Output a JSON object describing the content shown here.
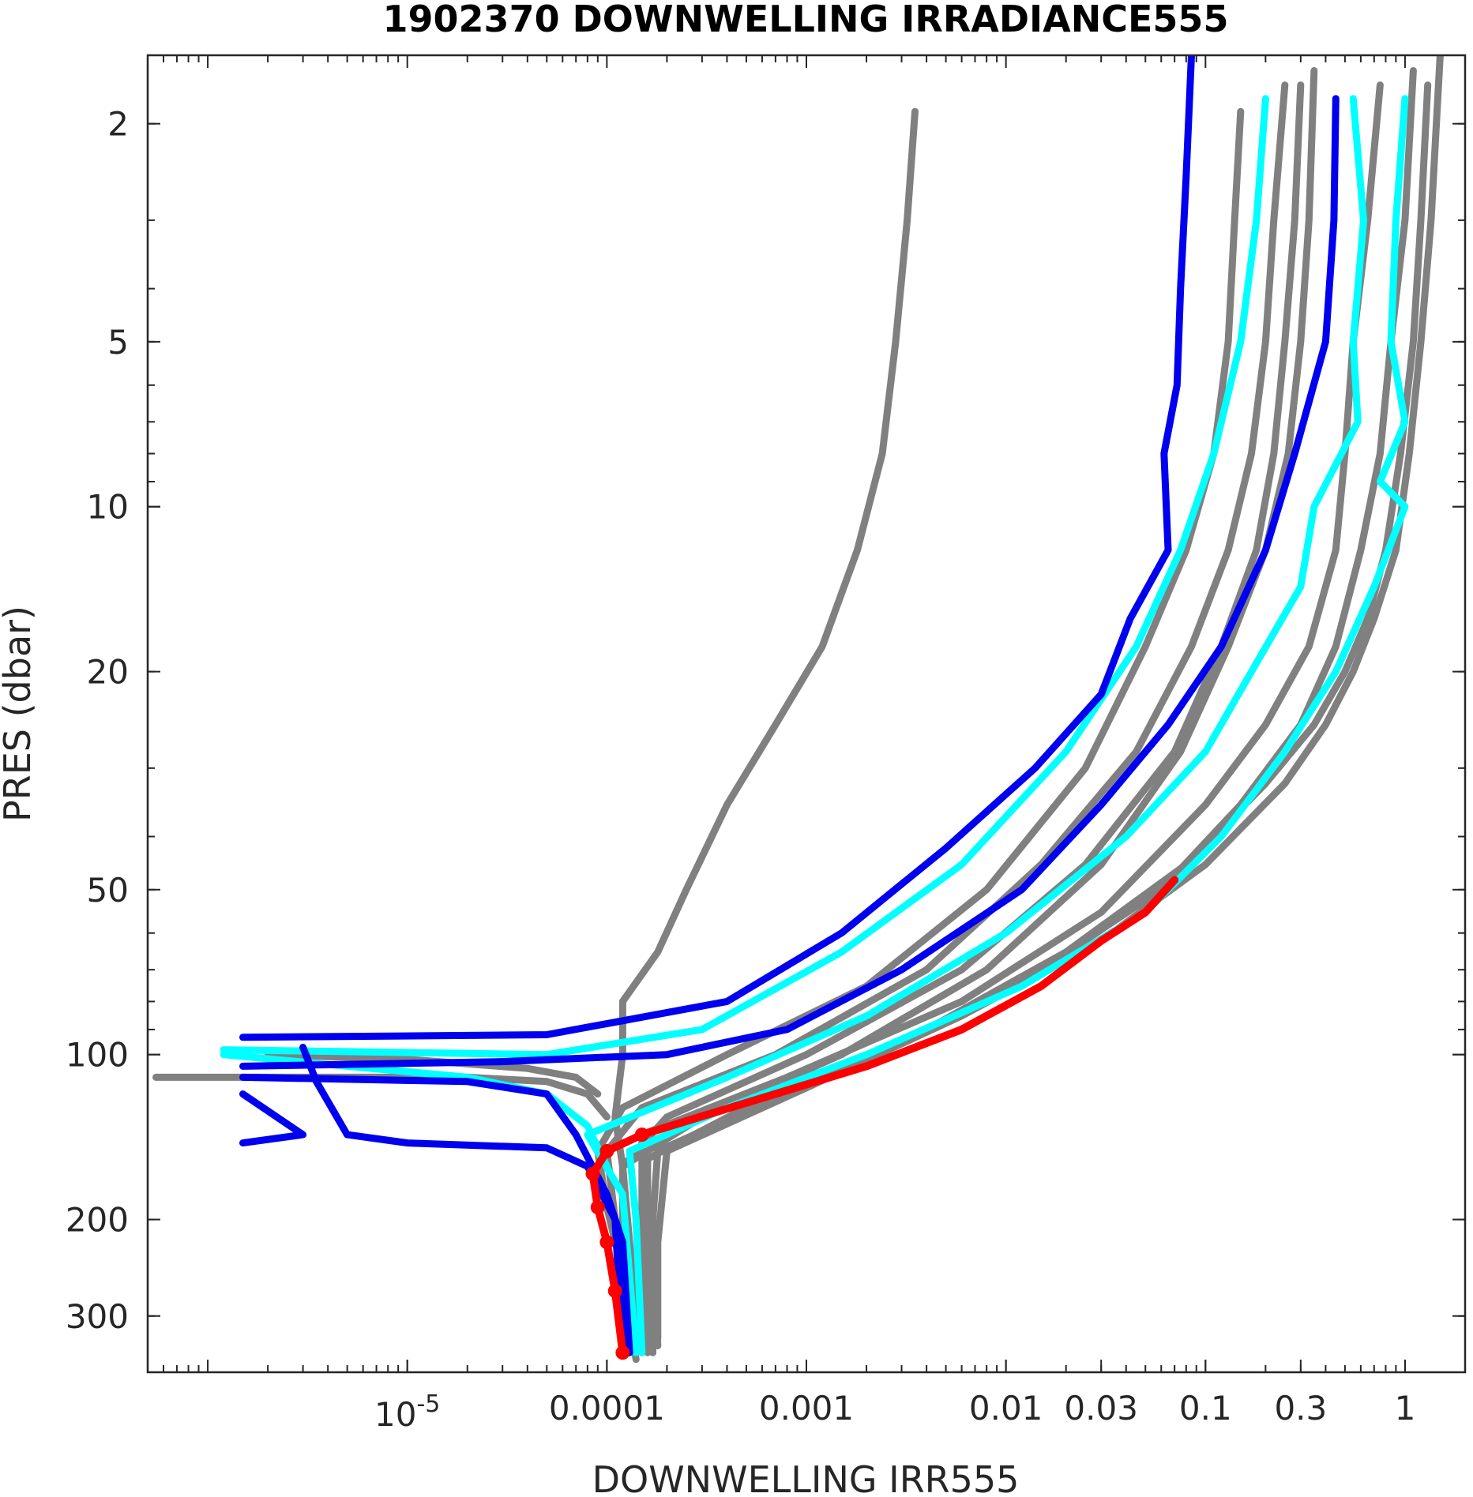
{
  "chart_data": {
    "type": "line",
    "title": "1902370  DOWNWELLING IRRADIANCE555",
    "xlabel": "DOWNWELLING IRR555",
    "ylabel": "PRES (dbar)",
    "x_scale": "log",
    "y_scale": "log",
    "y_reversed": true,
    "xlim": [
      5e-07,
      2
    ],
    "ylim": [
      1.5,
      380
    ],
    "x_ticks": [
      1e-05,
      0.0001,
      0.001,
      0.01,
      0.03,
      0.1,
      0.3,
      1
    ],
    "x_tick_labels": [
      {
        "base": "10",
        "exp": "-5"
      },
      {
        "base": "0.0001",
        "exp": ""
      },
      {
        "base": "0.001",
        "exp": ""
      },
      {
        "base": "0.01",
        "exp": ""
      },
      {
        "base": "0.03",
        "exp": ""
      },
      {
        "base": "0.1",
        "exp": ""
      },
      {
        "base": "0.3",
        "exp": ""
      },
      {
        "base": "1",
        "exp": ""
      }
    ],
    "y_ticks": [
      2,
      5,
      10,
      20,
      50,
      100,
      200,
      300
    ],
    "y_tick_labels": [
      "2",
      "5",
      "10",
      "20",
      "50",
      "100",
      "200",
      "300"
    ],
    "colors": {
      "gray": "#808080",
      "blue": "#0000ee",
      "cyan": "#00ffff",
      "red": "#ff0000",
      "axis": "#262626"
    },
    "series": [
      {
        "color": "gray",
        "points": [
          [
            0.0035,
            1.9
          ],
          [
            0.0032,
            3
          ],
          [
            0.0028,
            5
          ],
          [
            0.0024,
            8
          ],
          [
            0.0018,
            12
          ],
          [
            0.0012,
            18
          ],
          [
            0.0007,
            25
          ],
          [
            0.0004,
            35
          ],
          [
            0.00025,
            50
          ],
          [
            0.00018,
            65
          ],
          [
            0.00012,
            80
          ],
          [
            0.00012,
            100
          ],
          [
            0.00011,
            130
          ],
          [
            0.00012,
            160
          ],
          [
            0.00012,
            200
          ],
          [
            0.00013,
            300
          ],
          [
            0.00014,
            360
          ]
        ]
      },
      {
        "color": "gray",
        "points": [
          [
            0.15,
            1.9
          ],
          [
            0.14,
            3
          ],
          [
            0.13,
            5
          ],
          [
            0.11,
            8
          ],
          [
            0.08,
            12
          ],
          [
            0.05,
            18
          ],
          [
            0.025,
            30
          ],
          [
            0.008,
            50
          ],
          [
            0.002,
            75
          ],
          [
            0.0004,
            100
          ],
          [
            0.00012,
            125
          ],
          [
            9e-05,
            150
          ],
          [
            0.0001,
            190
          ],
          [
            0.00012,
            250
          ],
          [
            0.00014,
            350
          ]
        ]
      },
      {
        "color": "gray",
        "points": [
          [
            0.25,
            1.7
          ],
          [
            0.22,
            3
          ],
          [
            0.2,
            5
          ],
          [
            0.17,
            8
          ],
          [
            0.13,
            12
          ],
          [
            0.085,
            18
          ],
          [
            0.045,
            28
          ],
          [
            0.015,
            45
          ],
          [
            0.004,
            70
          ],
          [
            0.0007,
            100
          ],
          [
            0.00015,
            125
          ],
          [
            0.0001,
            150
          ],
          [
            0.00011,
            200
          ],
          [
            0.00013,
            350
          ]
        ]
      },
      {
        "color": "gray",
        "points": [
          [
            0.3,
            1.7
          ],
          [
            0.28,
            3
          ],
          [
            0.25,
            5
          ],
          [
            0.22,
            8
          ],
          [
            0.18,
            12
          ],
          [
            0.12,
            18
          ],
          [
            0.07,
            28
          ],
          [
            0.025,
            45
          ],
          [
            0.006,
            70
          ],
          [
            0.001,
            100
          ],
          [
            0.0002,
            130
          ],
          [
            0.00012,
            160
          ],
          [
            0.00012,
            220
          ],
          [
            0.00014,
            350
          ]
        ]
      },
      {
        "color": "gray",
        "points": [
          [
            0.35,
            1.6
          ],
          [
            0.33,
            3
          ],
          [
            0.3,
            5
          ],
          [
            0.26,
            8
          ],
          [
            0.2,
            12
          ],
          [
            0.13,
            18
          ],
          [
            0.075,
            28
          ],
          [
            0.03,
            45
          ],
          [
            0.008,
            70
          ],
          [
            0.0015,
            100
          ],
          [
            0.0003,
            130
          ],
          [
            0.00012,
            160
          ],
          [
            0.00013,
            220
          ],
          [
            0.00015,
            350
          ]
        ]
      },
      {
        "color": "gray",
        "points": [
          [
            0.75,
            1.7
          ],
          [
            0.65,
            3
          ],
          [
            0.55,
            5
          ],
          [
            0.5,
            8
          ],
          [
            0.45,
            12
          ],
          [
            0.33,
            18
          ],
          [
            0.2,
            25
          ],
          [
            0.1,
            35
          ],
          [
            0.03,
            55
          ],
          [
            0.006,
            80
          ],
          [
            0.0008,
            110
          ],
          [
            0.00015,
            140
          ],
          [
            0.00015,
            200
          ],
          [
            0.00016,
            350
          ]
        ]
      },
      {
        "color": "gray",
        "points": [
          [
            1.1,
            1.6
          ],
          [
            1.0,
            3
          ],
          [
            0.85,
            5
          ],
          [
            0.75,
            8
          ],
          [
            0.6,
            12
          ],
          [
            0.45,
            18
          ],
          [
            0.3,
            25
          ],
          [
            0.15,
            35
          ],
          [
            0.06,
            50
          ],
          [
            0.015,
            70
          ],
          [
            0.003,
            95
          ],
          [
            0.0005,
            125
          ],
          [
            0.00016,
            155
          ],
          [
            0.00016,
            200
          ],
          [
            0.00017,
            350
          ]
        ]
      },
      {
        "color": "gray",
        "points": [
          [
            1.3,
            1.7
          ],
          [
            1.2,
            3
          ],
          [
            1.1,
            5
          ],
          [
            0.95,
            8
          ],
          [
            0.8,
            12
          ],
          [
            0.65,
            16
          ],
          [
            0.5,
            20
          ],
          [
            0.35,
            25
          ],
          [
            0.2,
            32
          ],
          [
            0.08,
            45
          ],
          [
            0.02,
            65
          ],
          [
            0.004,
            90
          ],
          [
            0.0007,
            120
          ],
          [
            0.00018,
            150
          ],
          [
            0.00017,
            200
          ],
          [
            0.00018,
            340
          ]
        ]
      },
      {
        "color": "gray",
        "points": [
          [
            1.5,
            1.5
          ],
          [
            1.35,
            3
          ],
          [
            1.2,
            5
          ],
          [
            1.05,
            8
          ],
          [
            0.9,
            12
          ],
          [
            0.7,
            16
          ],
          [
            0.55,
            20
          ],
          [
            0.4,
            25
          ],
          [
            0.25,
            32
          ],
          [
            0.1,
            45
          ],
          [
            0.03,
            62
          ],
          [
            0.006,
            85
          ],
          [
            0.001,
            115
          ],
          [
            0.0002,
            150
          ],
          [
            0.00018,
            220
          ],
          [
            0.00018,
            330
          ]
        ]
      },
      {
        "color": "gray",
        "points": [
          [
            5.5e-07,
            110
          ],
          [
            5e-06,
            110
          ],
          [
            2e-05,
            110
          ],
          [
            5e-05,
            112
          ],
          [
            8e-05,
            118
          ],
          [
            0.0001,
            130
          ]
        ]
      },
      {
        "color": "gray",
        "points": [
          [
            2e-06,
            100
          ],
          [
            1e-05,
            102
          ],
          [
            4e-05,
            106
          ],
          [
            7e-05,
            110
          ],
          [
            9e-05,
            118
          ]
        ]
      },
      {
        "color": "blue",
        "points": [
          [
            0.085,
            1.5
          ],
          [
            0.08,
            2.5
          ],
          [
            0.075,
            4
          ],
          [
            0.072,
            6
          ],
          [
            0.062,
            8
          ],
          [
            0.065,
            12
          ],
          [
            0.042,
            16
          ],
          [
            0.03,
            22
          ],
          [
            0.014,
            30
          ],
          [
            0.005,
            42
          ],
          [
            0.0015,
            60
          ],
          [
            0.0004,
            80
          ],
          [
            5e-05,
            92
          ],
          [
            1.5e-06,
            93
          ]
        ]
      },
      {
        "color": "blue",
        "points": [
          [
            0.45,
            1.8
          ],
          [
            0.44,
            3
          ],
          [
            0.4,
            5
          ],
          [
            0.28,
            8
          ],
          [
            0.2,
            12
          ],
          [
            0.12,
            18
          ],
          [
            0.065,
            25
          ],
          [
            0.03,
            35
          ],
          [
            0.012,
            50
          ],
          [
            0.003,
            70
          ],
          [
            0.0008,
            90
          ],
          [
            0.0002,
            100
          ],
          [
            3e-05,
            103
          ],
          [
            1.5e-06,
            105
          ]
        ]
      },
      {
        "color": "blue",
        "points": [
          [
            1.5e-06,
            110
          ],
          [
            2e-05,
            112
          ],
          [
            5e-05,
            118
          ],
          [
            7e-05,
            140
          ],
          [
            0.0001,
            180
          ],
          [
            0.00012,
            220
          ],
          [
            0.00013,
            350
          ]
        ]
      },
      {
        "color": "blue",
        "points": [
          [
            3e-06,
            97
          ],
          [
            3.5e-06,
            112
          ],
          [
            5e-06,
            140
          ],
          [
            1e-05,
            145
          ],
          [
            5e-05,
            148
          ],
          [
            8e-05,
            160
          ],
          [
            0.00011,
            200
          ],
          [
            0.00012,
            350
          ]
        ]
      },
      {
        "color": "blue",
        "points": [
          [
            1.5e-06,
            145
          ],
          [
            3e-06,
            140
          ],
          [
            1.5e-06,
            118
          ]
        ]
      },
      {
        "color": "cyan",
        "points": [
          [
            0.2,
            1.8
          ],
          [
            0.18,
            3
          ],
          [
            0.15,
            5
          ],
          [
            0.11,
            8
          ],
          [
            0.075,
            12
          ],
          [
            0.045,
            18
          ],
          [
            0.02,
            28
          ],
          [
            0.006,
            45
          ],
          [
            0.0015,
            65
          ],
          [
            0.0003,
            90
          ],
          [
            5e-05,
            100
          ],
          [
            1.2e-06,
            98
          ]
        ]
      },
      {
        "color": "cyan",
        "points": [
          [
            0.55,
            1.8
          ],
          [
            0.62,
            3
          ],
          [
            0.55,
            5
          ],
          [
            0.58,
            7
          ],
          [
            0.35,
            10
          ],
          [
            0.3,
            14
          ],
          [
            0.17,
            20
          ],
          [
            0.1,
            28
          ],
          [
            0.04,
            40
          ],
          [
            0.01,
            60
          ],
          [
            0.002,
            85
          ],
          [
            0.0004,
            110
          ],
          [
            8e-05,
            140
          ],
          [
            0.00012,
            180
          ],
          [
            0.00014,
            350
          ]
        ]
      },
      {
        "color": "cyan",
        "points": [
          [
            1.0,
            1.8
          ],
          [
            0.9,
            3
          ],
          [
            0.85,
            5
          ],
          [
            1.0,
            7
          ],
          [
            0.75,
            9
          ],
          [
            1.0,
            10
          ],
          [
            0.7,
            14
          ],
          [
            0.45,
            20
          ],
          [
            0.25,
            28
          ],
          [
            0.12,
            40
          ],
          [
            0.05,
            55
          ],
          [
            0.012,
            75
          ],
          [
            0.002,
            100
          ],
          [
            0.0004,
            125
          ],
          [
            0.00013,
            150
          ],
          [
            0.00014,
            200
          ],
          [
            0.00015,
            350
          ]
        ]
      },
      {
        "color": "cyan",
        "points": [
          [
            1.2e-06,
            100
          ],
          [
            5e-06,
            105
          ],
          [
            2e-05,
            110
          ],
          [
            5e-05,
            118
          ],
          [
            8e-05,
            135
          ],
          [
            0.0001,
            160
          ]
        ]
      },
      {
        "color": "red",
        "points": [
          [
            0.07,
            48
          ],
          [
            0.05,
            55
          ],
          [
            0.03,
            62
          ],
          [
            0.015,
            75
          ],
          [
            0.006,
            90
          ],
          [
            0.002,
            105
          ],
          [
            0.0006,
            120
          ],
          [
            0.00015,
            140
          ],
          [
            0.0001,
            150
          ],
          [
            8.5e-05,
            165
          ],
          [
            9e-05,
            190
          ],
          [
            0.0001,
            220
          ],
          [
            0.00011,
            270
          ],
          [
            0.00012,
            350
          ]
        ]
      }
    ]
  }
}
